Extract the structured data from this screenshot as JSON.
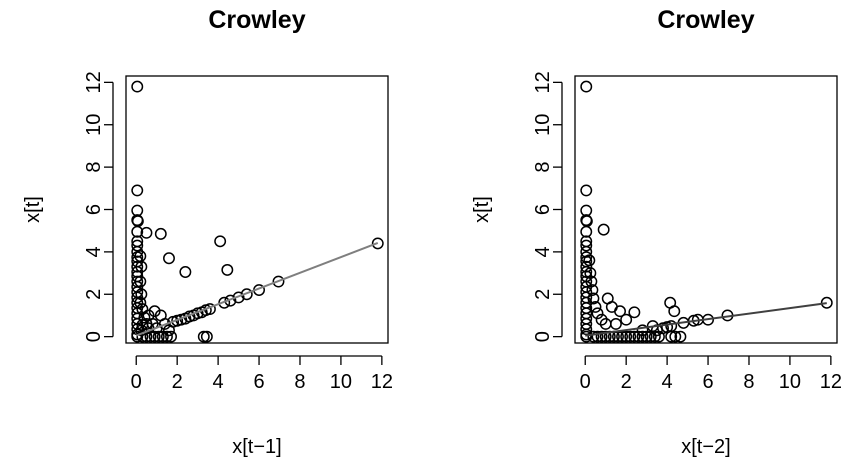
{
  "chart_data": [
    {
      "type": "scatter",
      "title": "Crowley",
      "xlabel": "x[t−1]",
      "ylabel": "x[t]",
      "xlim": [
        -0.5,
        12.3
      ],
      "ylim": [
        -0.3,
        12.3
      ],
      "xticks": [
        0,
        2,
        4,
        6,
        8,
        10,
        12
      ],
      "yticks": [
        0,
        2,
        4,
        6,
        8,
        10,
        12
      ],
      "xtick_labels": [
        "0",
        "2",
        "4",
        "6",
        "8",
        "10",
        "12"
      ],
      "ytick_labels": [
        "0",
        "2",
        "4",
        "6",
        "8",
        "10",
        "12"
      ],
      "grid": false,
      "fit_line": {
        "x": [
          0,
          11.8
        ],
        "y": [
          0.05,
          4.42
        ],
        "color": "#7f7f7f"
      },
      "points": [
        [
          0.05,
          11.8
        ],
        [
          0.05,
          6.9
        ],
        [
          0.05,
          5.95
        ],
        [
          0.05,
          5.5
        ],
        [
          0.08,
          5.45
        ],
        [
          0.05,
          4.95
        ],
        [
          0.05,
          4.5
        ],
        [
          0.05,
          4.3
        ],
        [
          0.05,
          4.0
        ],
        [
          0.05,
          3.75
        ],
        [
          0.05,
          3.55
        ],
        [
          0.05,
          3.3
        ],
        [
          0.05,
          3.05
        ],
        [
          0.05,
          2.85
        ],
        [
          0.05,
          2.6
        ],
        [
          0.05,
          2.35
        ],
        [
          0.05,
          2.1
        ],
        [
          0.05,
          1.85
        ],
        [
          0.05,
          1.6
        ],
        [
          0.05,
          1.35
        ],
        [
          0.05,
          1.1
        ],
        [
          0.05,
          0.85
        ],
        [
          0.05,
          0.6
        ],
        [
          0.05,
          0.35
        ],
        [
          0.05,
          0.1
        ],
        [
          0.05,
          0.0
        ],
        [
          0.2,
          3.8
        ],
        [
          0.25,
          3.3
        ],
        [
          0.2,
          2.6
        ],
        [
          0.25,
          2.0
        ],
        [
          0.2,
          1.6
        ],
        [
          0.3,
          1.3
        ],
        [
          0.4,
          0.9
        ],
        [
          0.5,
          0.6
        ],
        [
          0.6,
          0.4
        ],
        [
          0.25,
          0.3
        ],
        [
          0.3,
          0.0
        ],
        [
          0.5,
          0.0
        ],
        [
          0.7,
          0.0
        ],
        [
          0.9,
          0.0
        ],
        [
          1.1,
          0.0
        ],
        [
          1.3,
          0.0
        ],
        [
          1.5,
          0.0
        ],
        [
          1.7,
          0.0
        ],
        [
          0.5,
          4.9
        ],
        [
          1.2,
          4.85
        ],
        [
          1.6,
          3.7
        ],
        [
          2.4,
          3.05
        ],
        [
          4.1,
          4.5
        ],
        [
          4.45,
          3.15
        ],
        [
          0.8,
          0.6
        ],
        [
          1.0,
          0.4
        ],
        [
          1.2,
          1.0
        ],
        [
          1.4,
          0.6
        ],
        [
          1.6,
          0.3
        ],
        [
          0.6,
          1.0
        ],
        [
          0.9,
          1.2
        ],
        [
          0.3,
          0.55
        ],
        [
          1.8,
          0.7
        ],
        [
          2.0,
          0.75
        ],
        [
          2.2,
          0.8
        ],
        [
          2.4,
          0.85
        ],
        [
          2.6,
          0.95
        ],
        [
          2.8,
          1.0
        ],
        [
          3.0,
          1.1
        ],
        [
          3.2,
          1.15
        ],
        [
          3.4,
          1.25
        ],
        [
          3.6,
          1.3
        ],
        [
          3.3,
          0.0
        ],
        [
          3.45,
          0.0
        ],
        [
          4.3,
          1.6
        ],
        [
          4.6,
          1.7
        ],
        [
          5.0,
          1.85
        ],
        [
          5.4,
          2.0
        ],
        [
          6.0,
          2.2
        ],
        [
          6.95,
          2.6
        ],
        [
          11.8,
          4.4
        ]
      ]
    },
    {
      "type": "scatter",
      "title": "Crowley",
      "xlabel": "x[t−2]",
      "ylabel": "x[t]",
      "xlim": [
        -0.5,
        12.3
      ],
      "ylim": [
        -0.3,
        12.3
      ],
      "xticks": [
        0,
        2,
        4,
        6,
        8,
        10,
        12
      ],
      "yticks": [
        0,
        2,
        4,
        6,
        8,
        10,
        12
      ],
      "xtick_labels": [
        "0",
        "2",
        "4",
        "6",
        "8",
        "10",
        "12"
      ],
      "ytick_labels": [
        "0",
        "2",
        "4",
        "6",
        "8",
        "10",
        "12"
      ],
      "grid": false,
      "fit_line": {
        "x": [
          0,
          11.8
        ],
        "y": [
          0.05,
          1.58
        ],
        "color": "#404040"
      },
      "points": [
        [
          0.05,
          11.8
        ],
        [
          0.05,
          6.9
        ],
        [
          0.05,
          5.95
        ],
        [
          0.05,
          5.5
        ],
        [
          0.08,
          5.45
        ],
        [
          0.05,
          4.95
        ],
        [
          0.05,
          4.5
        ],
        [
          0.05,
          4.3
        ],
        [
          0.05,
          4.0
        ],
        [
          0.05,
          3.75
        ],
        [
          0.05,
          3.55
        ],
        [
          0.05,
          3.3
        ],
        [
          0.05,
          3.05
        ],
        [
          0.05,
          2.85
        ],
        [
          0.05,
          2.6
        ],
        [
          0.05,
          2.35
        ],
        [
          0.05,
          2.1
        ],
        [
          0.05,
          1.85
        ],
        [
          0.05,
          1.6
        ],
        [
          0.05,
          1.35
        ],
        [
          0.05,
          1.1
        ],
        [
          0.05,
          0.85
        ],
        [
          0.05,
          0.6
        ],
        [
          0.05,
          0.35
        ],
        [
          0.05,
          0.1
        ],
        [
          0.05,
          0.0
        ],
        [
          0.2,
          3.6
        ],
        [
          0.25,
          3.0
        ],
        [
          0.3,
          2.6
        ],
        [
          0.35,
          2.2
        ],
        [
          0.4,
          1.8
        ],
        [
          0.5,
          1.4
        ],
        [
          0.6,
          1.1
        ],
        [
          0.8,
          0.8
        ],
        [
          1.0,
          0.6
        ],
        [
          0.9,
          5.05
        ],
        [
          1.1,
          1.8
        ],
        [
          1.3,
          1.4
        ],
        [
          1.5,
          0.6
        ],
        [
          1.7,
          1.2
        ],
        [
          2.0,
          0.8
        ],
        [
          2.4,
          1.15
        ],
        [
          2.8,
          0.3
        ],
        [
          3.3,
          0.5
        ],
        [
          4.15,
          1.6
        ],
        [
          4.35,
          1.2
        ],
        [
          0.4,
          0.0
        ],
        [
          0.6,
          0.0
        ],
        [
          0.8,
          0.0
        ],
        [
          1.0,
          0.0
        ],
        [
          1.2,
          0.0
        ],
        [
          1.4,
          0.0
        ],
        [
          1.6,
          0.0
        ],
        [
          1.8,
          0.0
        ],
        [
          2.0,
          0.0
        ],
        [
          2.2,
          0.0
        ],
        [
          2.4,
          0.0
        ],
        [
          2.6,
          0.0
        ],
        [
          2.8,
          0.0
        ],
        [
          3.0,
          0.0
        ],
        [
          3.2,
          0.0
        ],
        [
          3.4,
          0.0
        ],
        [
          3.6,
          0.0
        ],
        [
          4.2,
          0.0
        ],
        [
          4.4,
          0.0
        ],
        [
          4.65,
          0.0
        ],
        [
          3.5,
          0.3
        ],
        [
          3.8,
          0.4
        ],
        [
          4.0,
          0.45
        ],
        [
          4.2,
          0.5
        ],
        [
          4.8,
          0.65
        ],
        [
          5.3,
          0.75
        ],
        [
          5.5,
          0.8
        ],
        [
          6.0,
          0.8
        ],
        [
          6.95,
          1.0
        ],
        [
          11.8,
          1.6
        ]
      ]
    }
  ]
}
